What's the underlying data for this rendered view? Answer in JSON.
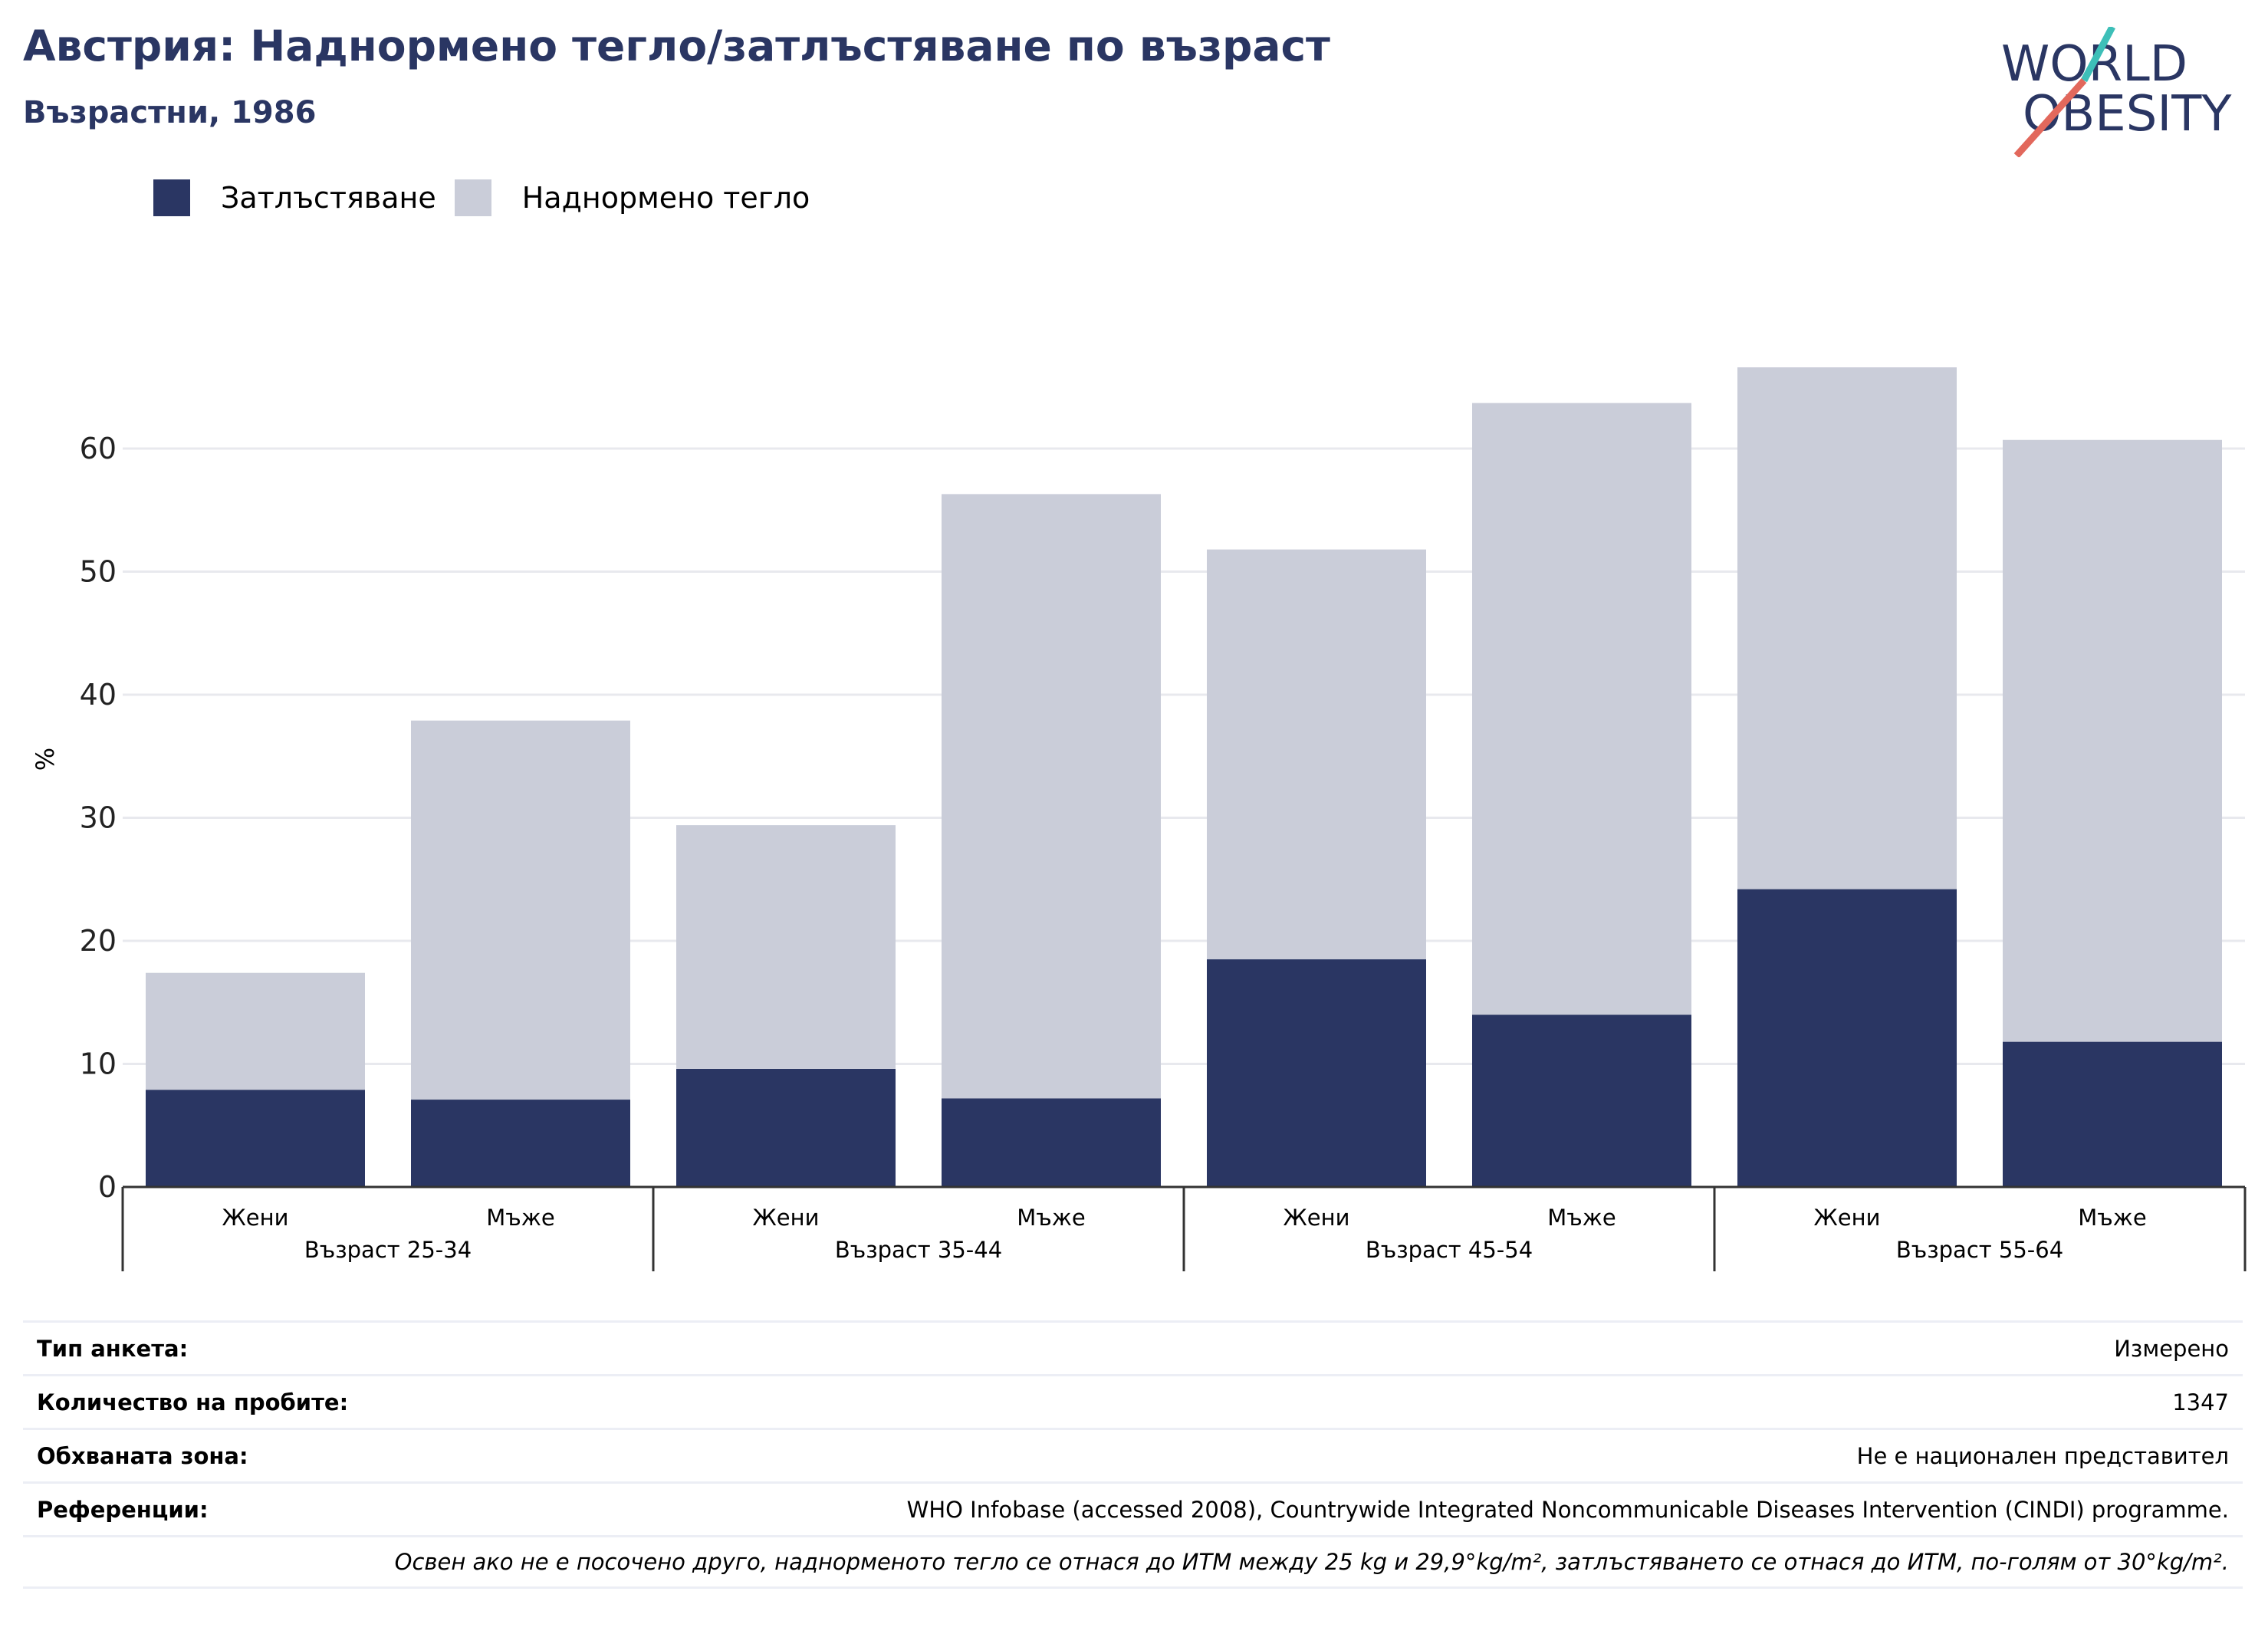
{
  "header": {
    "title": "Австрия: Наднормено тегло/затлъстяване по възраст",
    "subtitle": "Възрастни, 1986"
  },
  "logo": {
    "line1": "WORLD",
    "line2": "OBESITY"
  },
  "colors": {
    "obesity": "#2a3663",
    "overweight": "#cacdd9",
    "title": "#2a3663",
    "grid": "#e8e9ee",
    "logo_teal": "#3dbfb8",
    "logo_red": "#e2685c"
  },
  "chart_data": {
    "type": "bar",
    "stacked": true,
    "ylabel": "%",
    "ylim": [
      0,
      70
    ],
    "yticks": [
      0,
      10,
      20,
      30,
      40,
      50,
      60
    ],
    "grid": true,
    "legend_position": "top-left",
    "groups": [
      "Възраст 25-34",
      "Възраст 35-44",
      "Възраст 45-54",
      "Възраст 55-64"
    ],
    "categories": [
      "Жени",
      "Мъже",
      "Жени",
      "Мъже",
      "Жени",
      "Мъже",
      "Жени",
      "Мъже"
    ],
    "series": [
      {
        "name": "Затлъстяване",
        "values": [
          7.9,
          7.1,
          9.6,
          7.2,
          18.5,
          14.0,
          24.2,
          11.8
        ]
      },
      {
        "name": "Наднормено тегло",
        "values": [
          9.5,
          30.8,
          19.8,
          49.1,
          33.3,
          49.7,
          42.4,
          48.9
        ]
      }
    ]
  },
  "info": {
    "survey_type_label": "Тип анкета:",
    "survey_type_value": "Измерено",
    "sample_size_label": "Количество на пробите:",
    "sample_size_value": "1347",
    "area_label": "Обхваната зона:",
    "area_value": "Не е национален представител",
    "references_label": "Референции:",
    "references_value": "WHO Infobase (accessed 2008), Countrywide Integrated Noncommunicable Diseases Intervention (CINDI) programme.",
    "note": "Освен ако не е посочено друго, наднорменото тегло се отнася до ИТМ между 25 kg и 29,9°kg/m², затлъстяването се отнася до ИТМ, по-голям от 30°kg/m²."
  }
}
